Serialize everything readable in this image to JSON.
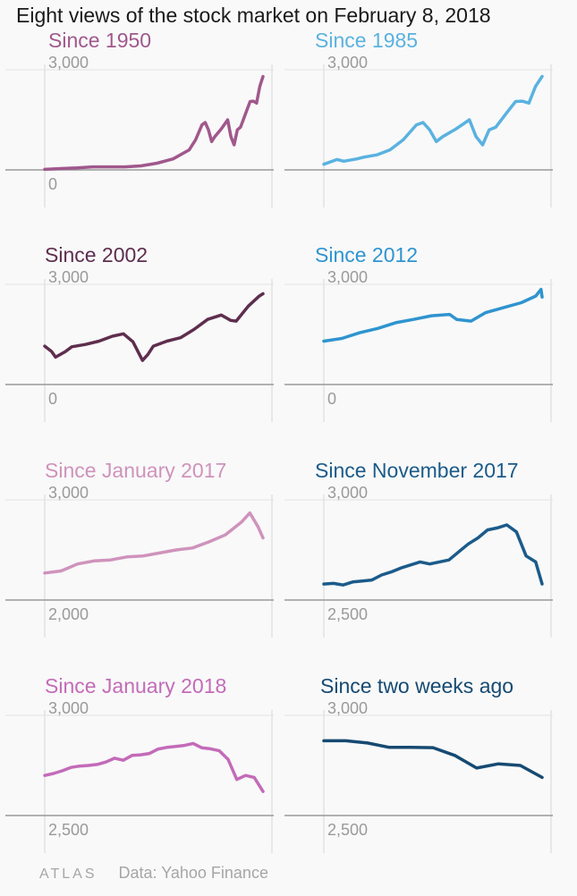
{
  "title": "Eight views of the stock market on February 8, 2018",
  "footer": {
    "logo": "ATLAS",
    "source": "Data: Yahoo Finance"
  },
  "colors": {
    "since1950": "#a0588c",
    "since1985": "#5ab2e0",
    "since2002": "#5e2e4e",
    "since2012": "#2f94cf",
    "sinceJan2017": "#cf93bc",
    "sinceNov2017": "#1b5b8a",
    "sinceJan2018": "#c36bb9",
    "sinceTwoWeeks": "#164a72",
    "axis": "#999999",
    "grid": "#e3e3e3"
  },
  "chart_data": [
    {
      "type": "line",
      "title": "Since 1950",
      "color": "#a0588c",
      "ylim": [
        0,
        3000
      ],
      "yticks": [
        {
          "value": 3000,
          "label": "3,000"
        },
        {
          "value": 0,
          "label": "0"
        }
      ],
      "x": [
        1950,
        1955,
        1960,
        1965,
        1970,
        1975,
        1980,
        1985,
        1990,
        1995,
        1997,
        1999,
        2000,
        2001,
        2002,
        2003,
        2005,
        2007,
        2008,
        2009,
        2010,
        2011,
        2013,
        2014,
        2015,
        2016,
        2017,
        2018
      ],
      "values": [
        17,
        40,
        58,
        90,
        92,
        90,
        120,
        200,
        330,
        600,
        900,
        1350,
        1420,
        1200,
        850,
        1000,
        1230,
        1500,
        1000,
        750,
        1200,
        1280,
        1800,
        2050,
        2060,
        2000,
        2500,
        2800
      ]
    },
    {
      "type": "line",
      "title": "Since 1985",
      "color": "#5ab2e0",
      "ylim": [
        0,
        3000
      ],
      "yticks": [
        {
          "value": 3000,
          "label": "3,000"
        }
      ],
      "x": [
        1985,
        1987,
        1988,
        1990,
        1991,
        1993,
        1995,
        1997,
        1999,
        2000,
        2001,
        2002,
        2003,
        2005,
        2007,
        2008,
        2009,
        2010,
        2011,
        2013,
        2014,
        2015,
        2016,
        2017,
        2018
      ],
      "values": [
        170,
        310,
        260,
        330,
        380,
        450,
        600,
        900,
        1350,
        1420,
        1200,
        850,
        1000,
        1230,
        1500,
        1000,
        750,
        1200,
        1280,
        1800,
        2050,
        2060,
        2000,
        2500,
        2800
      ]
    },
    {
      "type": "line",
      "title": "Since 2002",
      "color": "#5e2e4e",
      "ylim": [
        0,
        3000
      ],
      "yticks": [
        {
          "value": 3000,
          "label": "3,000"
        },
        {
          "value": 0,
          "label": "0"
        }
      ],
      "x": [
        2002,
        2002.5,
        2002.8,
        2003.5,
        2004,
        2005,
        2006,
        2007,
        2007.8,
        2008.5,
        2009.2,
        2009.6,
        2010,
        2011,
        2012,
        2013,
        2014,
        2015,
        2015.7,
        2016.1,
        2017,
        2017.8,
        2018.08
      ],
      "values": [
        1150,
        990,
        820,
        980,
        1130,
        1200,
        1300,
        1450,
        1520,
        1280,
        720,
        900,
        1150,
        1300,
        1400,
        1650,
        1950,
        2080,
        1920,
        1900,
        2350,
        2650,
        2720
      ]
    },
    {
      "type": "line",
      "title": "Since 2012",
      "color": "#2f94cf",
      "ylim": [
        0,
        3000
      ],
      "yticks": [
        {
          "value": 3000,
          "label": "3,000"
        },
        {
          "value": 0,
          "label": "0"
        }
      ],
      "x": [
        2012,
        2012.5,
        2013,
        2013.5,
        2014,
        2014.5,
        2015,
        2015.5,
        2015.7,
        2016.1,
        2016.5,
        2017,
        2017.5,
        2017.9,
        2018.05,
        2018.08
      ],
      "values": [
        1300,
        1380,
        1550,
        1680,
        1850,
        1950,
        2060,
        2100,
        1950,
        1900,
        2150,
        2300,
        2450,
        2650,
        2850,
        2620
      ]
    },
    {
      "type": "line",
      "title": "Since January 2017",
      "color": "#cf93bc",
      "ylim": [
        2000,
        3000
      ],
      "yticks": [
        {
          "value": 3000,
          "label": "3,000"
        },
        {
          "value": 2000,
          "label": "2,000"
        }
      ],
      "x": [
        0,
        1,
        2,
        3,
        4,
        5,
        6,
        7,
        8,
        9,
        10,
        11,
        12,
        12.5,
        13,
        13.3
      ],
      "values": [
        2270,
        2290,
        2360,
        2390,
        2400,
        2430,
        2440,
        2470,
        2500,
        2520,
        2580,
        2650,
        2780,
        2870,
        2730,
        2620
      ]
    },
    {
      "type": "line",
      "title": "Since November 2017",
      "color": "#1b5b8a",
      "ylim": [
        2500,
        3000
      ],
      "yticks": [
        {
          "value": 3000,
          "label": "3,000"
        },
        {
          "value": 2500,
          "label": "2,500"
        }
      ],
      "x": [
        0,
        3,
        6,
        9,
        12,
        15,
        18,
        21,
        24,
        27,
        30,
        33,
        36,
        39,
        42,
        45,
        48,
        51,
        54,
        57,
        60,
        63,
        66,
        68
      ],
      "values": [
        2580,
        2583,
        2575,
        2590,
        2595,
        2600,
        2625,
        2640,
        2660,
        2675,
        2690,
        2680,
        2690,
        2700,
        2740,
        2780,
        2810,
        2850,
        2860,
        2875,
        2840,
        2720,
        2690,
        2580
      ]
    },
    {
      "type": "line",
      "title": "Since January 2018",
      "color": "#c36bb9",
      "ylim": [
        2500,
        3000
      ],
      "yticks": [
        {
          "value": 3000,
          "label": "3,000"
        },
        {
          "value": 2500,
          "label": "2,500"
        }
      ],
      "x": [
        0,
        1,
        2,
        3,
        4,
        5,
        6,
        7,
        8,
        9,
        10,
        11,
        12,
        13,
        14,
        15,
        16,
        17,
        18,
        19,
        20,
        21,
        22,
        23,
        24,
        25
      ],
      "values": [
        2700,
        2710,
        2723,
        2740,
        2747,
        2750,
        2755,
        2767,
        2786,
        2776,
        2800,
        2803,
        2810,
        2832,
        2840,
        2845,
        2850,
        2860,
        2838,
        2833,
        2823,
        2780,
        2680,
        2700,
        2690,
        2620
      ]
    },
    {
      "type": "line",
      "title": "Since two weeks ago",
      "color": "#164a72",
      "ylim": [
        2500,
        3000
      ],
      "yticks": [
        {
          "value": 3000,
          "label": "3,000"
        },
        {
          "value": 2500,
          "label": "2,500"
        }
      ],
      "x": [
        0,
        1,
        2,
        3,
        4,
        5,
        6,
        7,
        8,
        9,
        10
      ],
      "values": [
        2873,
        2873,
        2862,
        2840,
        2840,
        2839,
        2800,
        2737,
        2758,
        2750,
        2690
      ]
    }
  ]
}
